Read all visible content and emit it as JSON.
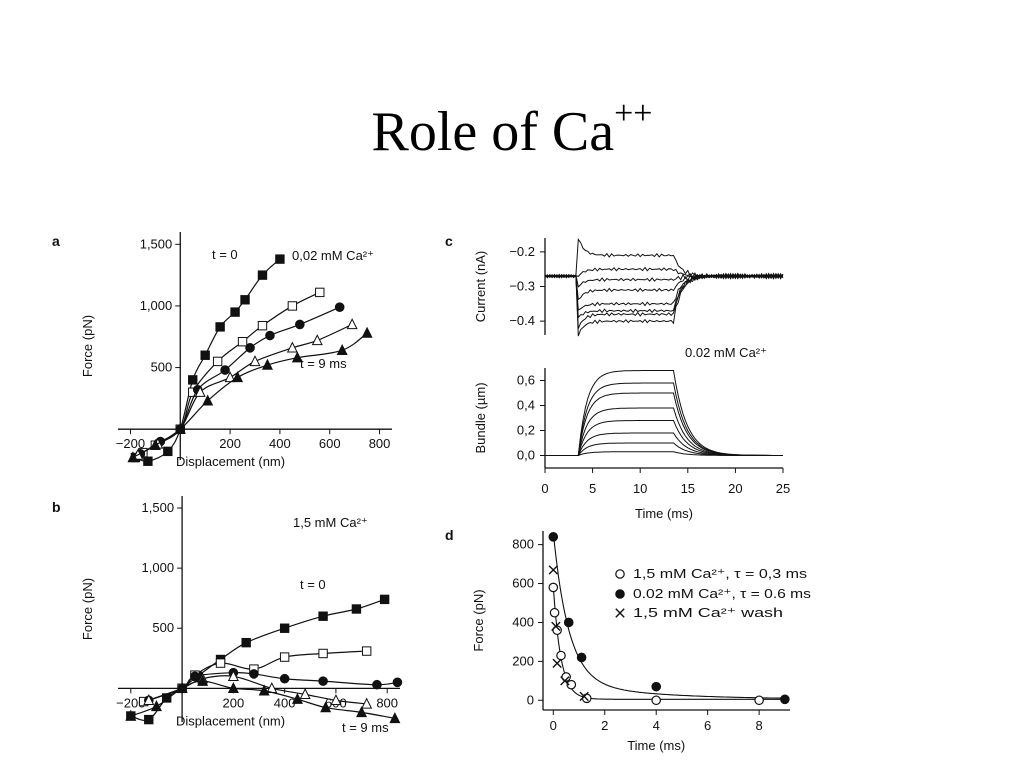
{
  "slide": {
    "title": "Role of Ca",
    "title_sup": "++"
  },
  "chart_data": [
    {
      "id": "a",
      "panel_label": "a",
      "type": "scatter",
      "xlabel": "Displacement (nm)",
      "ylabel": "Force (pN)",
      "xlim": [
        -250,
        850
      ],
      "ylim": [
        -250,
        1600
      ],
      "x_ticks": [
        -200,
        200,
        400,
        600,
        800
      ],
      "x_tick_labels": [
        "−200",
        "200",
        "400",
        "600",
        "800"
      ],
      "y_ticks": [
        500,
        1000,
        1500
      ],
      "y_tick_labels": [
        "500",
        "1,000",
        "1,500"
      ],
      "condition": "0,02 mM Ca²⁺",
      "annotations": [
        {
          "text": "t = 0",
          "near": "top curve"
        },
        {
          "text": "t = 9 ms",
          "near": "bottom curve"
        }
      ],
      "series": [
        {
          "marker": "filled-square",
          "x": [
            -180,
            -130,
            -50,
            0,
            50,
            100,
            160,
            220,
            260,
            330,
            400
          ],
          "y": [
            -230,
            -260,
            -180,
            0,
            400,
            600,
            830,
            950,
            1050,
            1250,
            1380
          ]
        },
        {
          "marker": "open-square",
          "x": [
            -150,
            -100,
            0,
            50,
            150,
            250,
            330,
            450,
            560
          ],
          "y": [
            -190,
            -130,
            0,
            300,
            550,
            710,
            840,
            1000,
            1110
          ]
        },
        {
          "marker": "filled-circle",
          "x": [
            -160,
            -80,
            0,
            70,
            180,
            280,
            360,
            480,
            640
          ],
          "y": [
            -200,
            -100,
            0,
            320,
            480,
            660,
            760,
            850,
            990
          ]
        },
        {
          "marker": "open-triangle",
          "x": [
            -170,
            -90,
            0,
            80,
            200,
            300,
            450,
            550,
            690
          ],
          "y": [
            -210,
            -120,
            0,
            300,
            420,
            550,
            660,
            720,
            850
          ]
        },
        {
          "marker": "filled-triangle",
          "x": [
            -190,
            -100,
            0,
            110,
            230,
            350,
            470,
            650,
            750
          ],
          "y": [
            -230,
            -130,
            0,
            230,
            420,
            520,
            580,
            640,
            780
          ]
        }
      ]
    },
    {
      "id": "b",
      "panel_label": "b",
      "type": "scatter",
      "xlabel": "Displacement (nm)",
      "ylabel": "Force (pN)",
      "xlim": [
        -250,
        850
      ],
      "ylim": [
        -280,
        1600
      ],
      "x_ticks": [
        -200,
        200,
        400,
        600,
        800
      ],
      "x_tick_labels": [
        "−200",
        "200",
        "400",
        "600",
        "800"
      ],
      "y_ticks": [
        500,
        1000,
        1500
      ],
      "y_tick_labels": [
        "500",
        "1,000",
        "1,500"
      ],
      "condition": "1,5 mM Ca²⁺",
      "annotations": [
        {
          "text": "t = 0",
          "near": "top curve"
        },
        {
          "text": "t = 9 ms",
          "near": "bottom curve"
        }
      ],
      "series": [
        {
          "marker": "filled-square",
          "x": [
            -200,
            -130,
            -60,
            0,
            60,
            150,
            250,
            400,
            550,
            680,
            790
          ],
          "y": [
            -230,
            -260,
            -80,
            0,
            100,
            240,
            380,
            500,
            600,
            660,
            740
          ]
        },
        {
          "marker": "open-square",
          "x": [
            -150,
            0,
            50,
            150,
            280,
            400,
            550,
            720
          ],
          "y": [
            -110,
            0,
            110,
            210,
            160,
            260,
            290,
            310
          ]
        },
        {
          "marker": "filled-circle",
          "x": [
            -130,
            0,
            50,
            200,
            280,
            400,
            550,
            760,
            840
          ],
          "y": [
            -100,
            0,
            100,
            130,
            120,
            80,
            60,
            30,
            50
          ]
        },
        {
          "marker": "open-triangle",
          "x": [
            -130,
            0,
            80,
            200,
            350,
            480,
            600,
            720
          ],
          "y": [
            -100,
            0,
            80,
            100,
            0,
            -50,
            -100,
            -130
          ]
        },
        {
          "marker": "filled-triangle",
          "x": [
            -200,
            -100,
            0,
            80,
            200,
            320,
            450,
            560,
            700,
            830
          ],
          "y": [
            -230,
            -150,
            0,
            60,
            0,
            -20,
            -90,
            -160,
            -200,
            -250
          ]
        }
      ]
    },
    {
      "id": "c-current",
      "panel_label": "c",
      "type": "line",
      "ylabel": "Current (nA)",
      "xlim": [
        0,
        25
      ],
      "ylim": [
        -0.44,
        -0.16
      ],
      "y_ticks": [
        -0.2,
        -0.3,
        -0.4
      ],
      "y_tick_labels": [
        "−0.2",
        "−0.3",
        "−0.4"
      ],
      "step_on_ms": 3.5,
      "step_off_ms": 13.5,
      "baseline": -0.27,
      "series": [
        {
          "peak": -0.16,
          "plateau": -0.21
        },
        {
          "peak": -0.27,
          "plateau": -0.25
        },
        {
          "peak": -0.3,
          "plateau": -0.28
        },
        {
          "peak": -0.34,
          "plateau": -0.31
        },
        {
          "peak": -0.37,
          "plateau": -0.35
        },
        {
          "peak": -0.39,
          "plateau": -0.37
        },
        {
          "peak": -0.42,
          "plateau": -0.38
        },
        {
          "peak": -0.44,
          "plateau": -0.4
        }
      ]
    },
    {
      "id": "c-bundle",
      "type": "line",
      "xlabel": "Time (ms)",
      "ylabel": "Bundle (µm)",
      "xlim": [
        0,
        25
      ],
      "ylim": [
        -0.1,
        0.7
      ],
      "x_ticks": [
        0,
        5,
        10,
        15,
        20,
        25
      ],
      "x_tick_labels": [
        "0",
        "5",
        "10",
        "15",
        "20",
        "25"
      ],
      "y_ticks": [
        0.0,
        0.2,
        0.4,
        0.6
      ],
      "y_tick_labels": [
        "0,0",
        "0,2",
        "0,4",
        "0,6"
      ],
      "condition": "0.02 mM Ca²⁺",
      "step_on_ms": 3.5,
      "step_off_ms": 13.5,
      "series": [
        {
          "plateau": 0.68
        },
        {
          "plateau": 0.58
        },
        {
          "plateau": 0.5
        },
        {
          "plateau": 0.38
        },
        {
          "plateau": 0.28
        },
        {
          "plateau": 0.18
        },
        {
          "plateau": 0.1
        },
        {
          "plateau": 0.03
        }
      ]
    },
    {
      "id": "d",
      "panel_label": "d",
      "type": "scatter",
      "xlabel": "Time (ms)",
      "ylabel": "Force (pN)",
      "xlim": [
        -0.4,
        9.2
      ],
      "ylim": [
        -50,
        870
      ],
      "x_ticks": [
        0,
        2,
        4,
        6,
        8
      ],
      "x_tick_labels": [
        "0",
        "2",
        "4",
        "6",
        "8"
      ],
      "y_ticks": [
        0,
        200,
        400,
        600,
        800
      ],
      "y_tick_labels": [
        "0",
        "200",
        "400",
        "600",
        "800"
      ],
      "series": [
        {
          "name": "1,5 mM Ca²⁺, τ = 0,3 ms",
          "marker": "open-circle",
          "x": [
            0,
            0.05,
            0.15,
            0.3,
            0.5,
            0.7,
            1.3,
            4.0,
            8.0
          ],
          "y": [
            580,
            450,
            360,
            230,
            120,
            80,
            10,
            0,
            0
          ]
        },
        {
          "name": "0.02 mM Ca²⁺, τ = 0.6 ms",
          "marker": "filled-circle",
          "x": [
            0,
            0.6,
            1.1,
            4.0,
            9.0
          ],
          "y": [
            840,
            400,
            220,
            70,
            5
          ]
        },
        {
          "name": "1,5 mM Ca²⁺ wash",
          "marker": "x-cross",
          "x": [
            0,
            0.1,
            0.15,
            0.45,
            1.2
          ],
          "y": [
            670,
            380,
            190,
            100,
            20
          ]
        }
      ]
    }
  ]
}
